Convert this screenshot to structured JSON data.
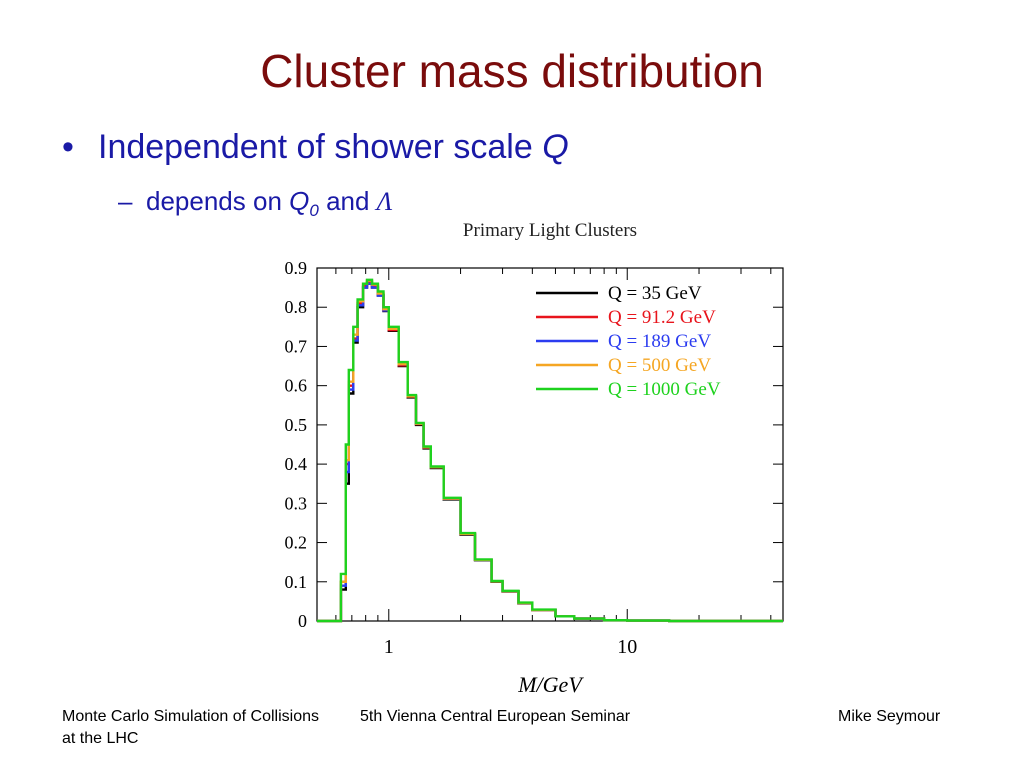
{
  "slide": {
    "title": "Cluster mass distribution",
    "bullet1_text": "Independent of shower scale ",
    "bullet1_var": "Q",
    "bullet2_prefix": "depends on ",
    "bullet2_var": "Q",
    "bullet2_sub": "0",
    "bullet2_and": " and ",
    "bullet2_lambda": "Λ"
  },
  "footer": {
    "left": "Monte Carlo Simulation of Collisions at the LHC",
    "center": "5th Vienna Central European Seminar",
    "right": "Mike Seymour"
  },
  "chart_data": {
    "type": "line",
    "title": "Primary Light Clusters",
    "xlabel": "M/GeV",
    "ylabel": "",
    "xscale": "log",
    "xlim": [
      0.5,
      45
    ],
    "ylim": [
      0,
      0.9
    ],
    "yticks": [
      "0",
      "0.1",
      "0.2",
      "0.3",
      "0.4",
      "0.5",
      "0.6",
      "0.7",
      "0.8",
      "0.9"
    ],
    "xticks": [
      "1",
      "10"
    ],
    "legend_position": "top-right",
    "x": [
      0.5,
      0.62,
      0.63,
      0.66,
      0.68,
      0.71,
      0.74,
      0.78,
      0.81,
      0.85,
      0.9,
      0.95,
      1.0,
      1.1,
      1.2,
      1.3,
      1.4,
      1.5,
      1.7,
      2.0,
      2.3,
      2.7,
      3.0,
      3.5,
      4.0,
      5.0,
      6.0,
      8.0,
      10.0,
      15.0,
      45.0
    ],
    "series": [
      {
        "name": "Q = 35 GeV",
        "color": "#000000",
        "values": [
          0,
          0,
          0.08,
          0.35,
          0.58,
          0.71,
          0.8,
          0.85,
          0.86,
          0.85,
          0.83,
          0.79,
          0.74,
          0.65,
          0.57,
          0.5,
          0.44,
          0.39,
          0.31,
          0.22,
          0.155,
          0.1,
          0.075,
          0.045,
          0.028,
          0.012,
          0.006,
          0.002,
          0.001,
          0,
          0
        ]
      },
      {
        "name": "Q = 91.2 GeV",
        "color": "#e8141c",
        "values": [
          0,
          0,
          0.1,
          0.4,
          0.6,
          0.72,
          0.81,
          0.855,
          0.865,
          0.855,
          0.832,
          0.792,
          0.742,
          0.652,
          0.572,
          0.502,
          0.442,
          0.392,
          0.312,
          0.222,
          0.156,
          0.101,
          0.076,
          0.046,
          0.028,
          0.012,
          0.006,
          0.002,
          0.001,
          0,
          0
        ]
      },
      {
        "name": "Q = 189 GeV",
        "color": "#2b3cf0",
        "values": [
          0,
          0,
          0.09,
          0.38,
          0.59,
          0.715,
          0.805,
          0.85,
          0.86,
          0.85,
          0.83,
          0.792,
          0.745,
          0.655,
          0.573,
          0.503,
          0.443,
          0.392,
          0.312,
          0.222,
          0.156,
          0.101,
          0.076,
          0.046,
          0.028,
          0.012,
          0.006,
          0.002,
          0.001,
          0,
          0
        ]
      },
      {
        "name": "Q = 500 GeV",
        "color": "#f5a623",
        "values": [
          0,
          0,
          0.1,
          0.41,
          0.61,
          0.73,
          0.815,
          0.86,
          0.868,
          0.858,
          0.835,
          0.795,
          0.745,
          0.655,
          0.573,
          0.503,
          0.443,
          0.392,
          0.312,
          0.222,
          0.156,
          0.101,
          0.076,
          0.046,
          0.028,
          0.012,
          0.006,
          0.002,
          0.001,
          0,
          0
        ]
      },
      {
        "name": "Q = 1000 GeV",
        "color": "#1ed21e",
        "values": [
          0,
          0,
          0.12,
          0.45,
          0.64,
          0.75,
          0.82,
          0.86,
          0.87,
          0.86,
          0.84,
          0.8,
          0.75,
          0.66,
          0.576,
          0.505,
          0.445,
          0.394,
          0.314,
          0.224,
          0.157,
          0.102,
          0.077,
          0.047,
          0.029,
          0.012,
          0.006,
          0.002,
          0.001,
          0,
          0
        ]
      }
    ]
  }
}
